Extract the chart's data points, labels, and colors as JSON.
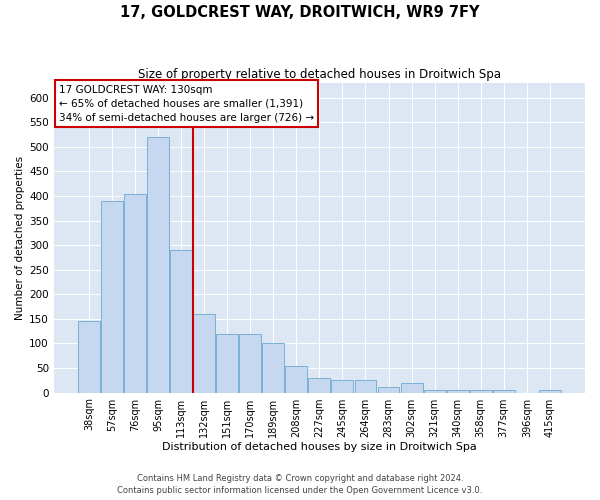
{
  "title": "17, GOLDCREST WAY, DROITWICH, WR9 7FY",
  "subtitle": "Size of property relative to detached houses in Droitwich Spa",
  "xlabel": "Distribution of detached houses by size in Droitwich Spa",
  "ylabel": "Number of detached properties",
  "footer_line1": "Contains HM Land Registry data © Crown copyright and database right 2024.",
  "footer_line2": "Contains public sector information licensed under the Open Government Licence v3.0.",
  "annotation_title": "17 GOLDCREST WAY: 130sqm",
  "annotation_line2": "← 65% of detached houses are smaller (1,391)",
  "annotation_line3": "34% of semi-detached houses are larger (726) →",
  "bar_color": "#c5d8f0",
  "bar_edge_color": "#7aafd4",
  "line_color": "#cc0000",
  "background_color": "#dde6f3",
  "categories": [
    "38sqm",
    "57sqm",
    "76sqm",
    "95sqm",
    "113sqm",
    "132sqm",
    "151sqm",
    "170sqm",
    "189sqm",
    "208sqm",
    "227sqm",
    "245sqm",
    "264sqm",
    "283sqm",
    "302sqm",
    "321sqm",
    "340sqm",
    "358sqm",
    "377sqm",
    "396sqm",
    "415sqm"
  ],
  "values": [
    145,
    390,
    405,
    520,
    290,
    160,
    120,
    120,
    100,
    55,
    30,
    25,
    25,
    12,
    20,
    5,
    5,
    5,
    5,
    0,
    5
  ],
  "ylim": [
    0,
    630
  ],
  "yticks": [
    0,
    50,
    100,
    150,
    200,
    250,
    300,
    350,
    400,
    450,
    500,
    550,
    600
  ],
  "vline_position": 4.5,
  "figsize": [
    6.0,
    5.0
  ],
  "dpi": 100
}
